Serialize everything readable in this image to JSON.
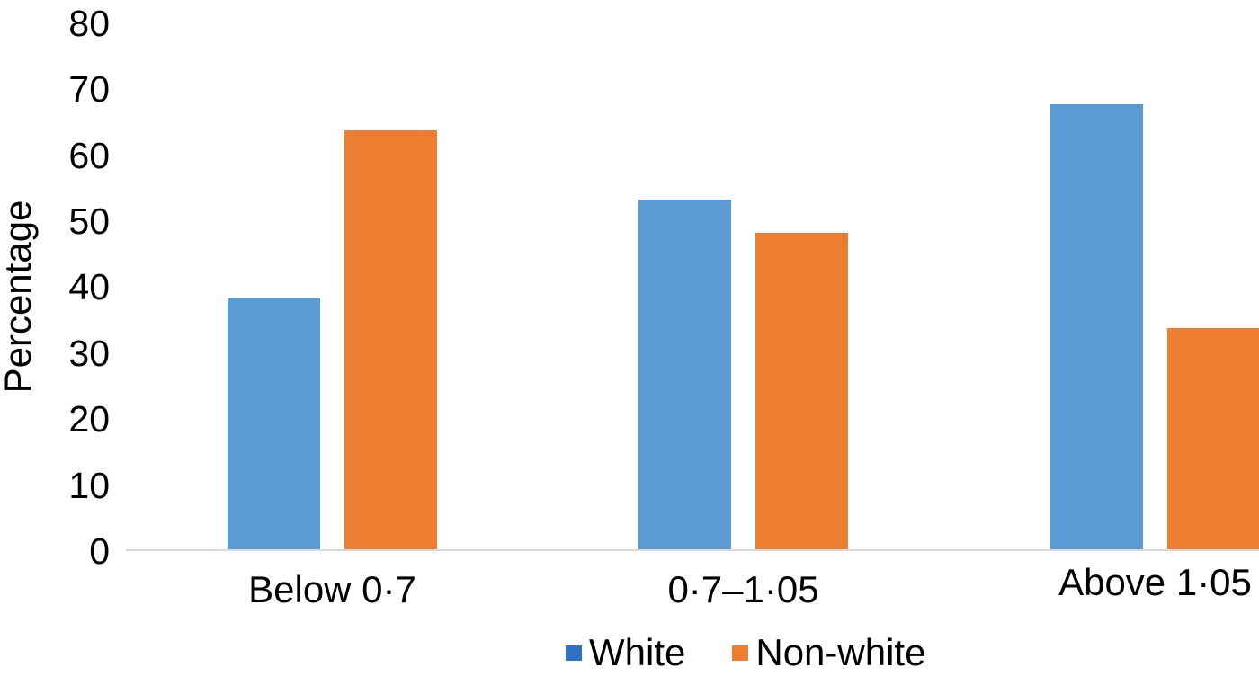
{
  "chart_data": {
    "type": "bar",
    "title": "",
    "ylabel": "Percentage",
    "xlabel": "",
    "categories": [
      "Below 0·7",
      "0·7–1·05",
      "Above 1·05"
    ],
    "series": [
      {
        "name": "White",
        "color": "#5B9BD5",
        "legend_color": "#2E72C4",
        "values": [
          38,
          53,
          67.5
        ]
      },
      {
        "name": "Non-white",
        "color": "#ED7D31",
        "legend_color": "#ED7D31",
        "values": [
          63.5,
          48,
          33.5
        ]
      }
    ],
    "yticks": [
      0,
      10,
      20,
      30,
      40,
      50,
      60,
      70,
      80
    ],
    "ylim": [
      0,
      80
    ],
    "grid": false,
    "legend_position": "bottom",
    "axis_line_color": "#D9D9D9",
    "background": "#FFFFFF",
    "text_color": "#000000"
  }
}
